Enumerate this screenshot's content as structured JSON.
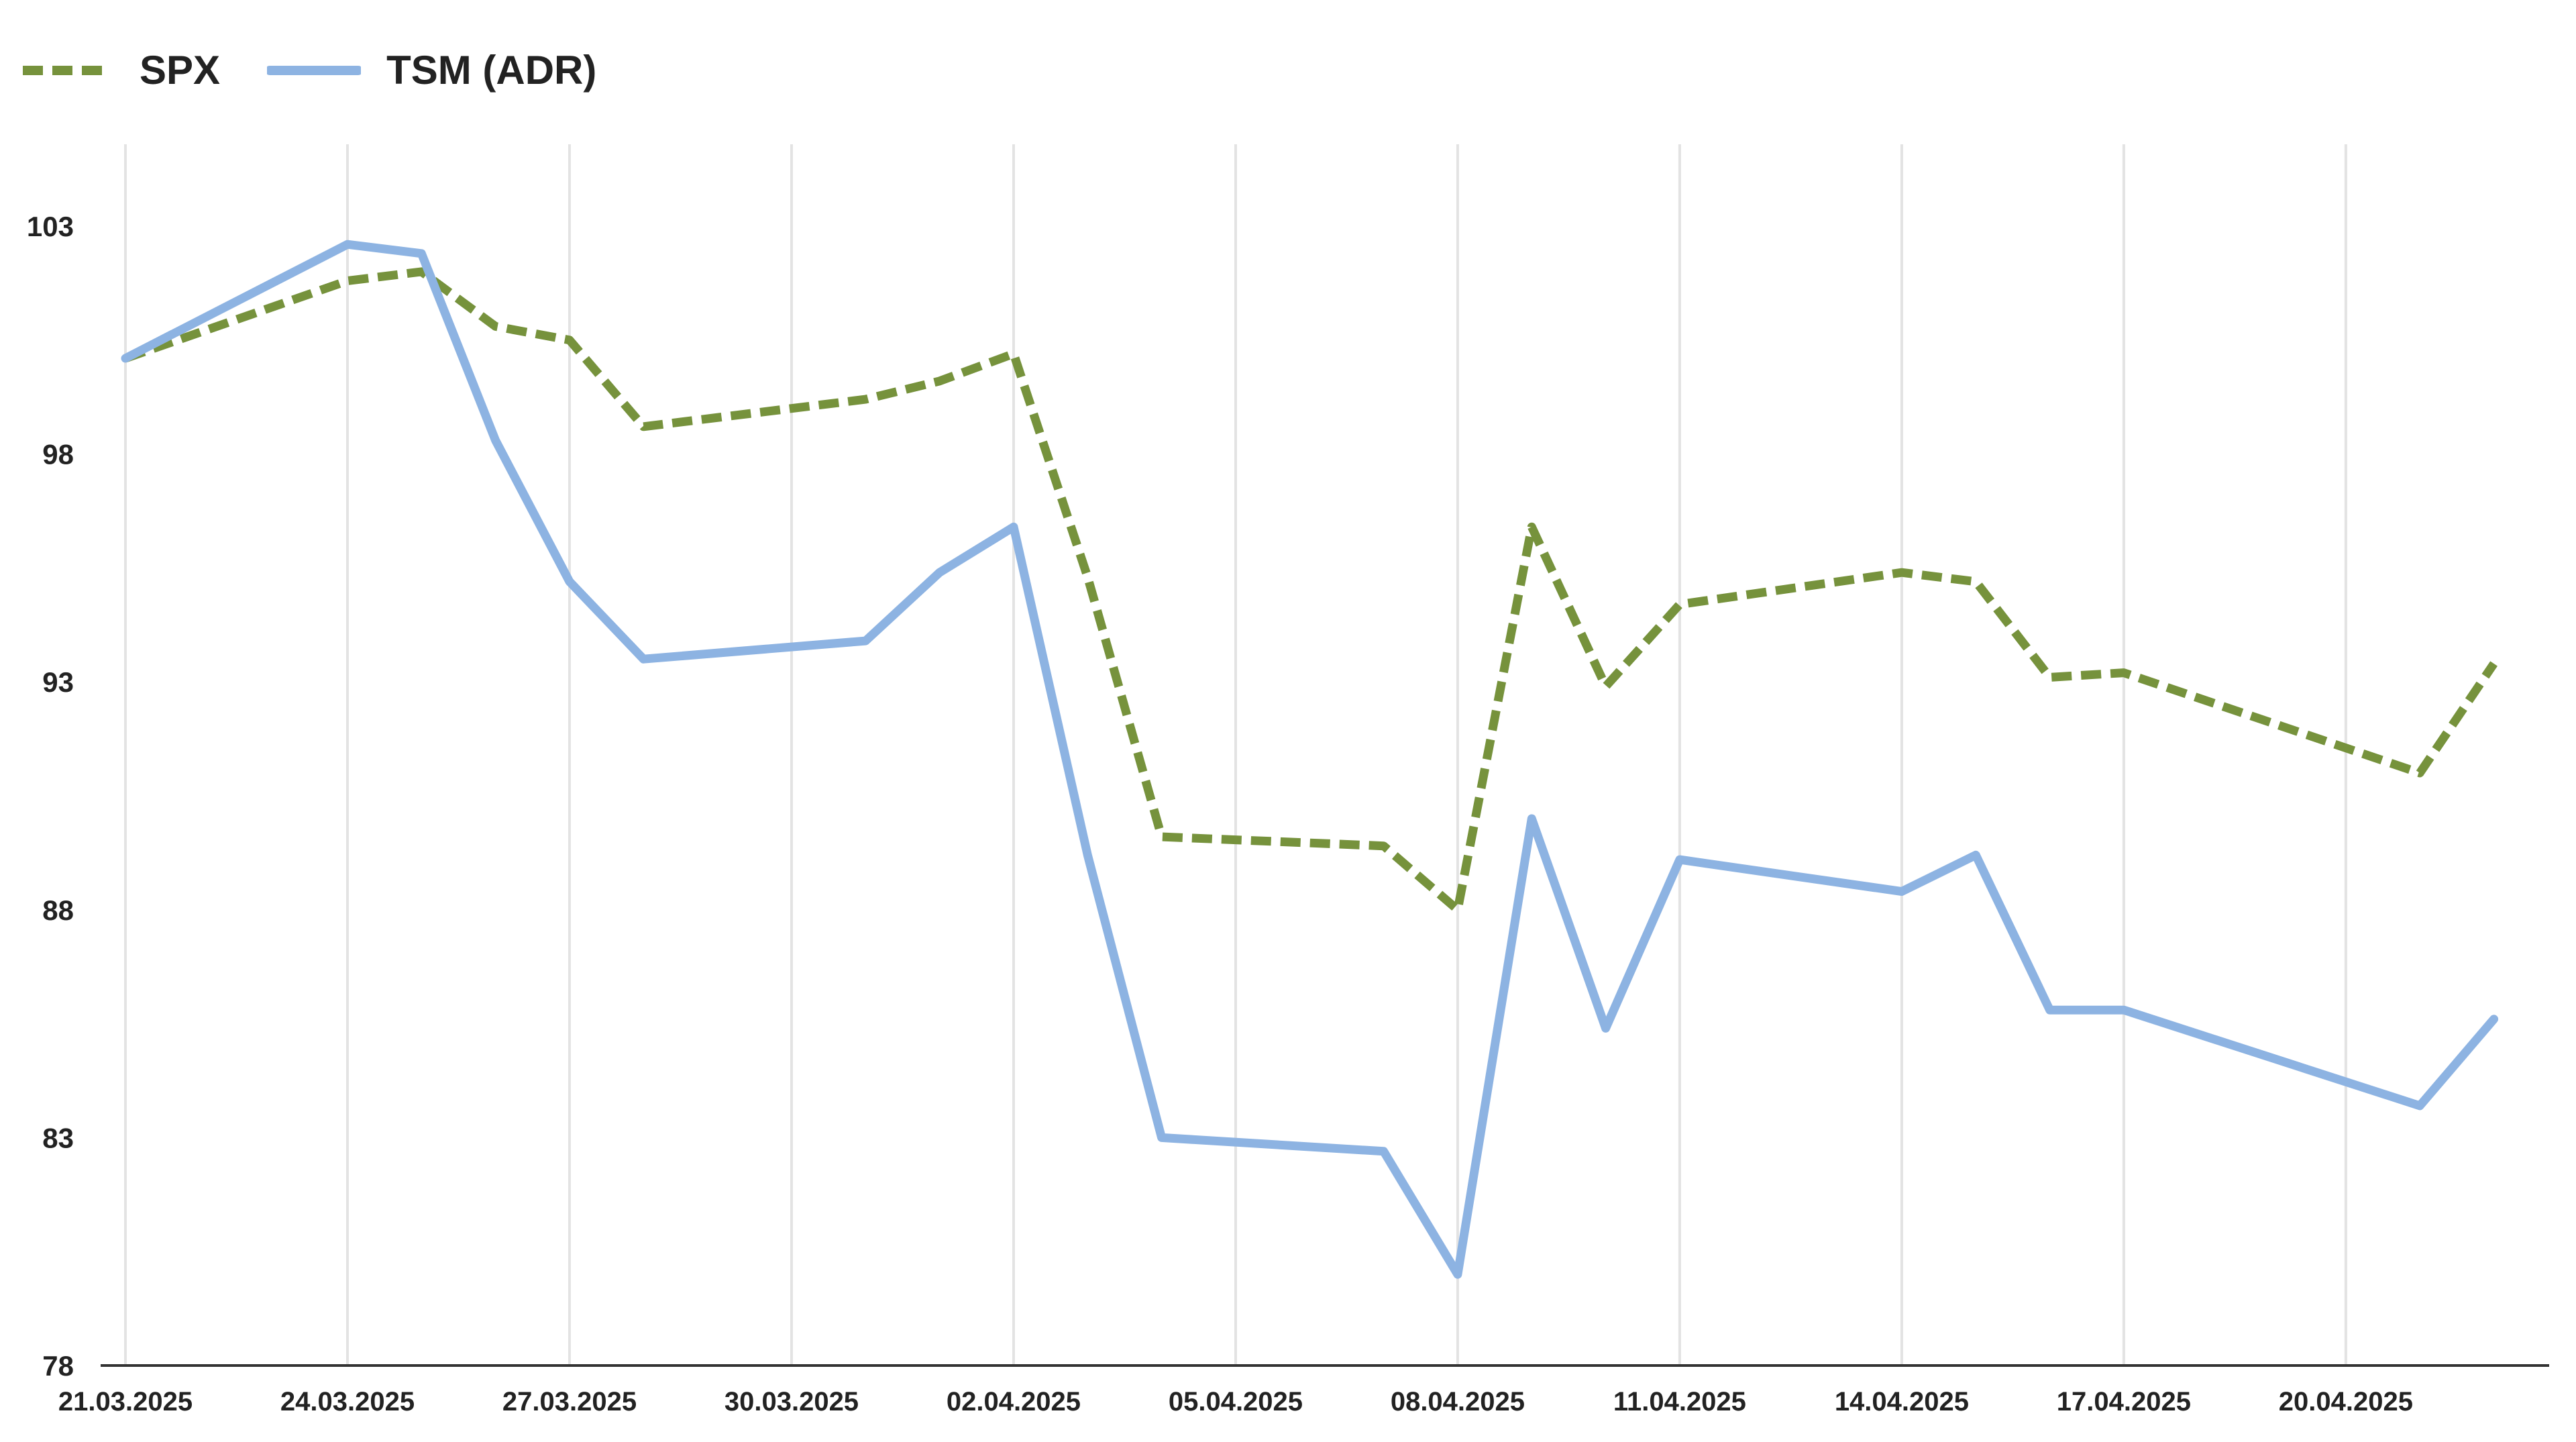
{
  "chart_data": {
    "type": "line",
    "title": "",
    "xlabel": "",
    "ylabel": "",
    "ylim": [
      78,
      103
    ],
    "yticks": [
      78,
      83,
      88,
      93,
      98,
      103
    ],
    "xlim": [
      "2025-03-21",
      "2025-04-22"
    ],
    "xticks": [
      "21.03.2025",
      "24.03.2025",
      "27.03.2025",
      "30.03.2025",
      "02.04.2025",
      "05.04.2025",
      "08.04.2025",
      "11.04.2025",
      "14.04.2025",
      "17.04.2025",
      "20.04.2025"
    ],
    "grid": "vertical",
    "legend_position": "top-left",
    "series": [
      {
        "name": "SPX",
        "color": "#76923c",
        "style": "dashed",
        "points": [
          {
            "x": "2025-03-21",
            "y": 100.1
          },
          {
            "x": "2025-03-24",
            "y": 101.8
          },
          {
            "x": "2025-03-25",
            "y": 102.0
          },
          {
            "x": "2025-03-26",
            "y": 100.8
          },
          {
            "x": "2025-03-27",
            "y": 100.5
          },
          {
            "x": "2025-03-28",
            "y": 98.6
          },
          {
            "x": "2025-03-31",
            "y": 99.2
          },
          {
            "x": "2025-04-01",
            "y": 99.6
          },
          {
            "x": "2025-04-02",
            "y": 100.2
          },
          {
            "x": "2025-04-03",
            "y": 95.3
          },
          {
            "x": "2025-04-04",
            "y": 89.6
          },
          {
            "x": "2025-04-07",
            "y": 89.4
          },
          {
            "x": "2025-04-08",
            "y": 88.0
          },
          {
            "x": "2025-04-09",
            "y": 96.4
          },
          {
            "x": "2025-04-10",
            "y": 92.9
          },
          {
            "x": "2025-04-11",
            "y": 94.7
          },
          {
            "x": "2025-04-14",
            "y": 95.4
          },
          {
            "x": "2025-04-15",
            "y": 95.2
          },
          {
            "x": "2025-04-16",
            "y": 93.1
          },
          {
            "x": "2025-04-17",
            "y": 93.2
          },
          {
            "x": "2025-04-21",
            "y": 91.0
          },
          {
            "x": "2025-04-22",
            "y": 93.4
          }
        ]
      },
      {
        "name": "TSM (ADR)",
        "color": "#8db3e2",
        "style": "solid",
        "points": [
          {
            "x": "2025-03-21",
            "y": 100.1
          },
          {
            "x": "2025-03-24",
            "y": 102.6
          },
          {
            "x": "2025-03-25",
            "y": 102.4
          },
          {
            "x": "2025-03-26",
            "y": 98.3
          },
          {
            "x": "2025-03-27",
            "y": 95.2
          },
          {
            "x": "2025-03-28",
            "y": 93.5
          },
          {
            "x": "2025-03-31",
            "y": 93.9
          },
          {
            "x": "2025-04-01",
            "y": 95.4
          },
          {
            "x": "2025-04-02",
            "y": 96.4
          },
          {
            "x": "2025-04-03",
            "y": 89.2
          },
          {
            "x": "2025-04-04",
            "y": 83.0
          },
          {
            "x": "2025-04-07",
            "y": 82.7
          },
          {
            "x": "2025-04-08",
            "y": 80.0
          },
          {
            "x": "2025-04-09",
            "y": 90.0
          },
          {
            "x": "2025-04-10",
            "y": 85.4
          },
          {
            "x": "2025-04-11",
            "y": 89.1
          },
          {
            "x": "2025-04-14",
            "y": 88.4
          },
          {
            "x": "2025-04-15",
            "y": 89.2
          },
          {
            "x": "2025-04-16",
            "y": 85.8
          },
          {
            "x": "2025-04-17",
            "y": 85.8
          },
          {
            "x": "2025-04-21",
            "y": 83.7
          },
          {
            "x": "2025-04-22",
            "y": 85.6
          }
        ]
      }
    ]
  }
}
